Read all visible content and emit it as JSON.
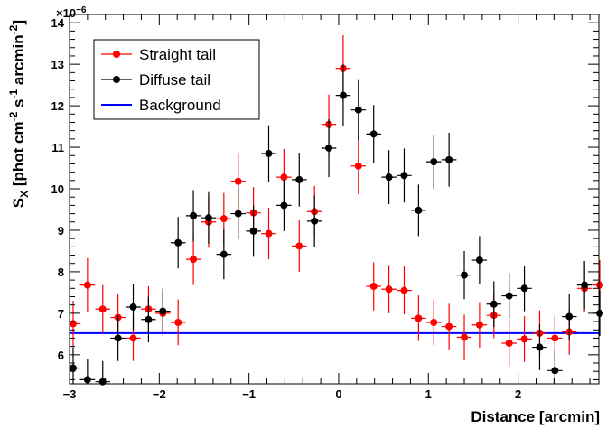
{
  "chart_data": {
    "type": "scatter",
    "title": "",
    "xlabel": "Distance [arcmin]",
    "ylabel_main": "S",
    "ylabel_sub": "X",
    "ylabel_rest": " [phot cm",
    "ylabel_sup1": "-2",
    "ylabel_mid1": " s",
    "ylabel_sup2": "-1",
    "ylabel_mid2": " arcmin",
    "ylabel_sup3": "-2",
    "ylabel_end": "]",
    "y_multiplier_base": "×10",
    "y_multiplier_exp": "−6",
    "xlim": [
      -3.0,
      2.9
    ],
    "ylim": [
      5.3,
      14.2
    ],
    "x_ticks": [
      -3,
      -2,
      -1,
      0,
      1,
      2
    ],
    "x_tick_labels": [
      "−3",
      "−2",
      "−1",
      "0",
      "1",
      "2"
    ],
    "y_ticks": [
      6,
      7,
      8,
      9,
      10,
      11,
      12,
      13,
      14
    ],
    "y_tick_labels": [
      "6",
      "7",
      "8",
      "9",
      "10",
      "11",
      "12",
      "13",
      "14"
    ],
    "grid": false,
    "legend_position": "top-left",
    "colors": {
      "straight": "#ff0000",
      "diffuse": "#000000",
      "background": "#0000ff"
    },
    "x_error": 0.083,
    "series": [
      {
        "name": "Straight tail",
        "points": [
          {
            "x": -2.96,
            "y": 6.75,
            "err": 0.55
          },
          {
            "x": -2.8,
            "y": 7.68,
            "err": 0.65
          },
          {
            "x": -2.63,
            "y": 7.1,
            "err": 0.58
          },
          {
            "x": -2.46,
            "y": 6.9,
            "err": 0.55
          },
          {
            "x": -2.29,
            "y": 6.4,
            "err": 0.55
          },
          {
            "x": -2.12,
            "y": 7.1,
            "err": 0.55
          },
          {
            "x": -1.96,
            "y": 7.0,
            "err": 0.55
          },
          {
            "x": -1.79,
            "y": 6.78,
            "err": 0.55
          },
          {
            "x": -1.62,
            "y": 8.3,
            "err": 0.62
          },
          {
            "x": -1.45,
            "y": 9.2,
            "err": 0.62
          },
          {
            "x": -1.28,
            "y": 9.28,
            "err": 0.62
          },
          {
            "x": -1.12,
            "y": 10.18,
            "err": 0.68
          },
          {
            "x": -0.95,
            "y": 9.42,
            "err": 0.62
          },
          {
            "x": -0.78,
            "y": 8.92,
            "err": 0.62
          },
          {
            "x": -0.61,
            "y": 10.28,
            "err": 0.68
          },
          {
            "x": -0.44,
            "y": 8.62,
            "err": 0.62
          },
          {
            "x": -0.27,
            "y": 9.45,
            "err": 0.62
          },
          {
            "x": -0.11,
            "y": 11.55,
            "err": 0.72
          },
          {
            "x": 0.05,
            "y": 12.9,
            "err": 0.8
          },
          {
            "x": 0.22,
            "y": 10.55,
            "err": 0.68
          },
          {
            "x": 0.39,
            "y": 7.65,
            "err": 0.58
          },
          {
            "x": 0.56,
            "y": 7.58,
            "err": 0.58
          },
          {
            "x": 0.73,
            "y": 7.55,
            "err": 0.58
          },
          {
            "x": 0.89,
            "y": 6.88,
            "err": 0.55
          },
          {
            "x": 1.06,
            "y": 6.78,
            "err": 0.55
          },
          {
            "x": 1.23,
            "y": 6.68,
            "err": 0.55
          },
          {
            "x": 1.4,
            "y": 6.42,
            "err": 0.55
          },
          {
            "x": 1.57,
            "y": 6.72,
            "err": 0.55
          },
          {
            "x": 1.73,
            "y": 6.95,
            "err": 0.55
          },
          {
            "x": 1.9,
            "y": 6.28,
            "err": 0.55
          },
          {
            "x": 2.07,
            "y": 6.38,
            "err": 0.55
          },
          {
            "x": 2.24,
            "y": 6.52,
            "err": 0.55
          },
          {
            "x": 2.41,
            "y": 6.4,
            "err": 0.55
          },
          {
            "x": 2.57,
            "y": 6.55,
            "err": 0.55
          },
          {
            "x": 2.74,
            "y": 7.6,
            "err": 0.58
          },
          {
            "x": 2.91,
            "y": 7.68,
            "err": 0.6
          }
        ]
      },
      {
        "name": "Diffuse tail",
        "points": [
          {
            "x": -2.96,
            "y": 5.68,
            "err": 0.5
          },
          {
            "x": -2.8,
            "y": 5.4,
            "err": 0.5
          },
          {
            "x": -2.63,
            "y": 5.35,
            "err": 0.5
          },
          {
            "x": -2.46,
            "y": 6.4,
            "err": 0.55
          },
          {
            "x": -2.29,
            "y": 7.15,
            "err": 0.55
          },
          {
            "x": -2.12,
            "y": 6.85,
            "err": 0.55
          },
          {
            "x": -1.96,
            "y": 7.05,
            "err": 0.55
          },
          {
            "x": -1.79,
            "y": 8.7,
            "err": 0.62
          },
          {
            "x": -1.62,
            "y": 9.35,
            "err": 0.62
          },
          {
            "x": -1.45,
            "y": 9.3,
            "err": 0.62
          },
          {
            "x": -1.28,
            "y": 8.42,
            "err": 0.6
          },
          {
            "x": -1.12,
            "y": 9.4,
            "err": 0.62
          },
          {
            "x": -0.95,
            "y": 8.98,
            "err": 0.62
          },
          {
            "x": -0.78,
            "y": 10.85,
            "err": 0.68
          },
          {
            "x": -0.61,
            "y": 9.6,
            "err": 0.62
          },
          {
            "x": -0.44,
            "y": 10.22,
            "err": 0.65
          },
          {
            "x": -0.27,
            "y": 9.22,
            "err": 0.62
          },
          {
            "x": -0.11,
            "y": 10.98,
            "err": 0.7
          },
          {
            "x": 0.05,
            "y": 12.25,
            "err": 0.75
          },
          {
            "x": 0.22,
            "y": 11.9,
            "err": 0.72
          },
          {
            "x": 0.39,
            "y": 11.32,
            "err": 0.7
          },
          {
            "x": 0.56,
            "y": 10.28,
            "err": 0.65
          },
          {
            "x": 0.73,
            "y": 10.32,
            "err": 0.65
          },
          {
            "x": 0.89,
            "y": 9.48,
            "err": 0.62
          },
          {
            "x": 1.06,
            "y": 10.65,
            "err": 0.65
          },
          {
            "x": 1.23,
            "y": 10.7,
            "err": 0.65
          },
          {
            "x": 1.4,
            "y": 7.92,
            "err": 0.58
          },
          {
            "x": 1.57,
            "y": 8.28,
            "err": 0.58
          },
          {
            "x": 1.73,
            "y": 7.22,
            "err": 0.55
          },
          {
            "x": 1.9,
            "y": 7.42,
            "err": 0.55
          },
          {
            "x": 2.07,
            "y": 7.6,
            "err": 0.55
          },
          {
            "x": 2.24,
            "y": 6.18,
            "err": 0.55
          },
          {
            "x": 2.41,
            "y": 5.62,
            "err": 0.5
          },
          {
            "x": 2.57,
            "y": 6.92,
            "err": 0.55
          },
          {
            "x": 2.74,
            "y": 7.68,
            "err": 0.58
          },
          {
            "x": 2.91,
            "y": 7.0,
            "err": 0.55
          }
        ]
      }
    ],
    "reference_lines": [
      {
        "name": "Background",
        "y": 6.52
      }
    ]
  }
}
